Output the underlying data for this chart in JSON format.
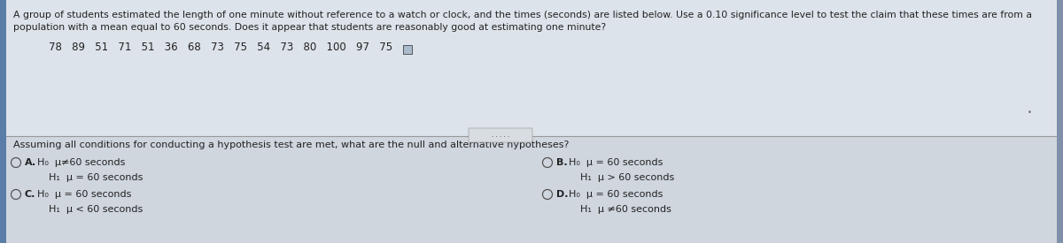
{
  "bg_color": "#d8dfe8",
  "top_bg": "#e8edf2",
  "bottom_bg": "#d4dae2",
  "title_text1": "A group of students estimated the length of one minute without reference to a watch or clock, and the times (seconds) are listed below. Use a 0.10 significance level to test the claim that these times are from a",
  "title_text2": "population with a mean equal to 60 seconds. Does it appear that students are reasonably good at estimating one minute?",
  "data_values": "78   89   51   71   51   36   68   73   75   54   73   80   100   97   75",
  "question_text": "Assuming all conditions for conducting a hypothesis test are met, what are the null and alternative hypotheses?",
  "option_A_H0": "H₀  μ≠60 seconds",
  "option_A_H1": "H₁  μ = 60 seconds",
  "option_B_H0": "H₀  μ = 60 seconds",
  "option_B_H1": "H₁  μ > 60 seconds",
  "option_C_H0": "H₀  μ = 60 seconds",
  "option_C_H1": "H₁  μ < 60 seconds",
  "option_D_H0": "H₀  μ = 60 seconds",
  "option_D_H1": "H₁  μ ≠60 seconds",
  "text_color": "#222222",
  "dark_text": "#333333",
  "title_fontsize": 7.8,
  "data_fontsize": 8.5,
  "question_fontsize": 8.0,
  "option_fontsize": 8.0,
  "sep_color": "#999999",
  "radio_color": "#555555",
  "left_bar_color": "#5b7ea8"
}
